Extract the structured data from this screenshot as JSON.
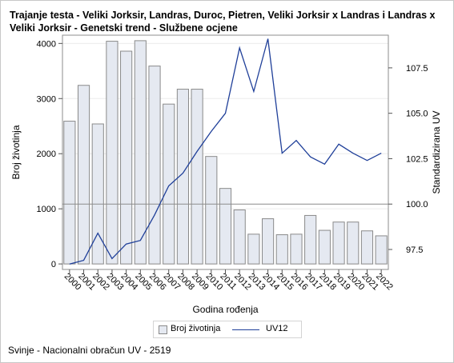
{
  "chart_data": {
    "type": "bar",
    "title": "Trajanje testa - Veliki Jorksir, Landras, Duroc, Pietren, Veliki Jorksir x Landras i Landras x Veliki Jorksir - Genetski trend - Službene ocjene",
    "xlabel": "Godina rođenja",
    "ylabel": "Broj životinja",
    "y2label": "Standardizirana UV",
    "categories": [
      "2000",
      "2001",
      "2002",
      "2003",
      "2004",
      "2005",
      "2006",
      "2007",
      "2008",
      "2009",
      "2010",
      "2011",
      "2012",
      "2013",
      "2014",
      "2015",
      "2016",
      "2017",
      "2018",
      "2019",
      "2020",
      "2021",
      "2022"
    ],
    "series": [
      {
        "name": "Broj životinja",
        "type": "bar",
        "axis": "left",
        "values": [
          2590,
          3240,
          2540,
          4040,
          3860,
          4050,
          3590,
          2900,
          3170,
          3170,
          1950,
          1370,
          980,
          540,
          820,
          530,
          540,
          880,
          610,
          760,
          760,
          600,
          510
        ]
      },
      {
        "name": "UV12",
        "type": "line",
        "axis": "right",
        "values": [
          96.7,
          96.9,
          98.4,
          97.0,
          97.8,
          98.0,
          99.4,
          101.0,
          101.7,
          102.9,
          104.0,
          105.0,
          108.6,
          106.2,
          109.1,
          102.8,
          103.5,
          102.6,
          102.2,
          103.3,
          102.8,
          102.4,
          102.8
        ]
      }
    ],
    "ylim": [
      -100,
      4150
    ],
    "y2lim": [
      96.4,
      109.3
    ],
    "yticks": [
      "0",
      "1000",
      "2000",
      "3000",
      "4000"
    ],
    "y2ticks": [
      "97.5",
      "100.0",
      "102.5",
      "105.0",
      "107.5"
    ],
    "reference_line_y2": 100.0,
    "grid": true,
    "legend": "bottom",
    "bar_fill": "#e5e9f1",
    "bar_stroke": "#8a8a8a",
    "line_color": "#1f3f99"
  },
  "footnote": "Svinje - Nacionalni obračun UV - 2519"
}
